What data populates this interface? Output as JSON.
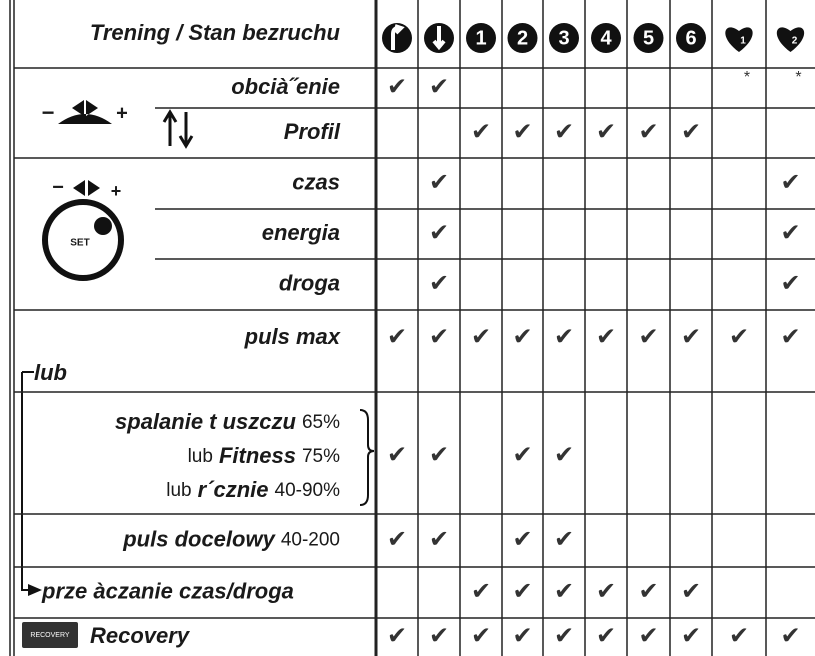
{
  "header": {
    "title": "Trening / Stan bezruchu",
    "numbers": [
      "1",
      "2",
      "3",
      "4",
      "5",
      "6"
    ],
    "heart_labels": [
      "1",
      "2"
    ]
  },
  "icons": {
    "minus": "−",
    "plus": "+",
    "set": "SET",
    "recovery": "RECOVERY"
  },
  "connector": "lub",
  "table": {
    "rows": [
      {
        "label": "obcià˝enie",
        "cells": {
          "0": "✔",
          "1": "✔",
          "8": "*",
          "9": "*"
        }
      },
      {
        "label": "Profil",
        "cells": {
          "2": "✔",
          "3": "✔",
          "4": "✔",
          "5": "✔",
          "6": "✔",
          "7": "✔"
        }
      },
      {
        "label": "czas",
        "cells": {
          "1": "✔",
          "9": "✔"
        }
      },
      {
        "label": "energia",
        "cells": {
          "1": "✔",
          "9": "✔"
        }
      },
      {
        "label": "droga",
        "cells": {
          "1": "✔",
          "9": "✔"
        }
      },
      {
        "label": "puls max",
        "cells": {
          "0": "✔",
          "1": "✔",
          "2": "✔",
          "3": "✔",
          "4": "✔",
          "5": "✔",
          "6": "✔",
          "7": "✔",
          "8": "✔",
          "9": "✔"
        }
      },
      {
        "lines": [
          {
            "label": "spalanie t uszczu",
            "note": "65%"
          },
          {
            "prefix": "lub",
            "label": "Fitness",
            "note": "75%"
          },
          {
            "prefix": "lub",
            "label": "r´cznie",
            "note": "40-90%"
          }
        ],
        "cells": {
          "0": "✔",
          "1": "✔",
          "3": "✔",
          "4": "✔"
        }
      },
      {
        "label": "puls docelowy",
        "note": "40-200",
        "cells": {
          "0": "✔",
          "1": "✔",
          "3": "✔",
          "4": "✔"
        }
      },
      {
        "label": "prze àczanie czas/droga",
        "cells": {
          "2": "✔",
          "3": "✔",
          "4": "✔",
          "5": "✔",
          "6": "✔",
          "7": "✔"
        }
      },
      {
        "label": "Recovery",
        "cells": {
          "0": "✔",
          "1": "✔",
          "2": "✔",
          "3": "✔",
          "4": "✔",
          "5": "✔",
          "6": "✔",
          "7": "✔",
          "8": "✔",
          "9": "✔"
        }
      }
    ]
  }
}
